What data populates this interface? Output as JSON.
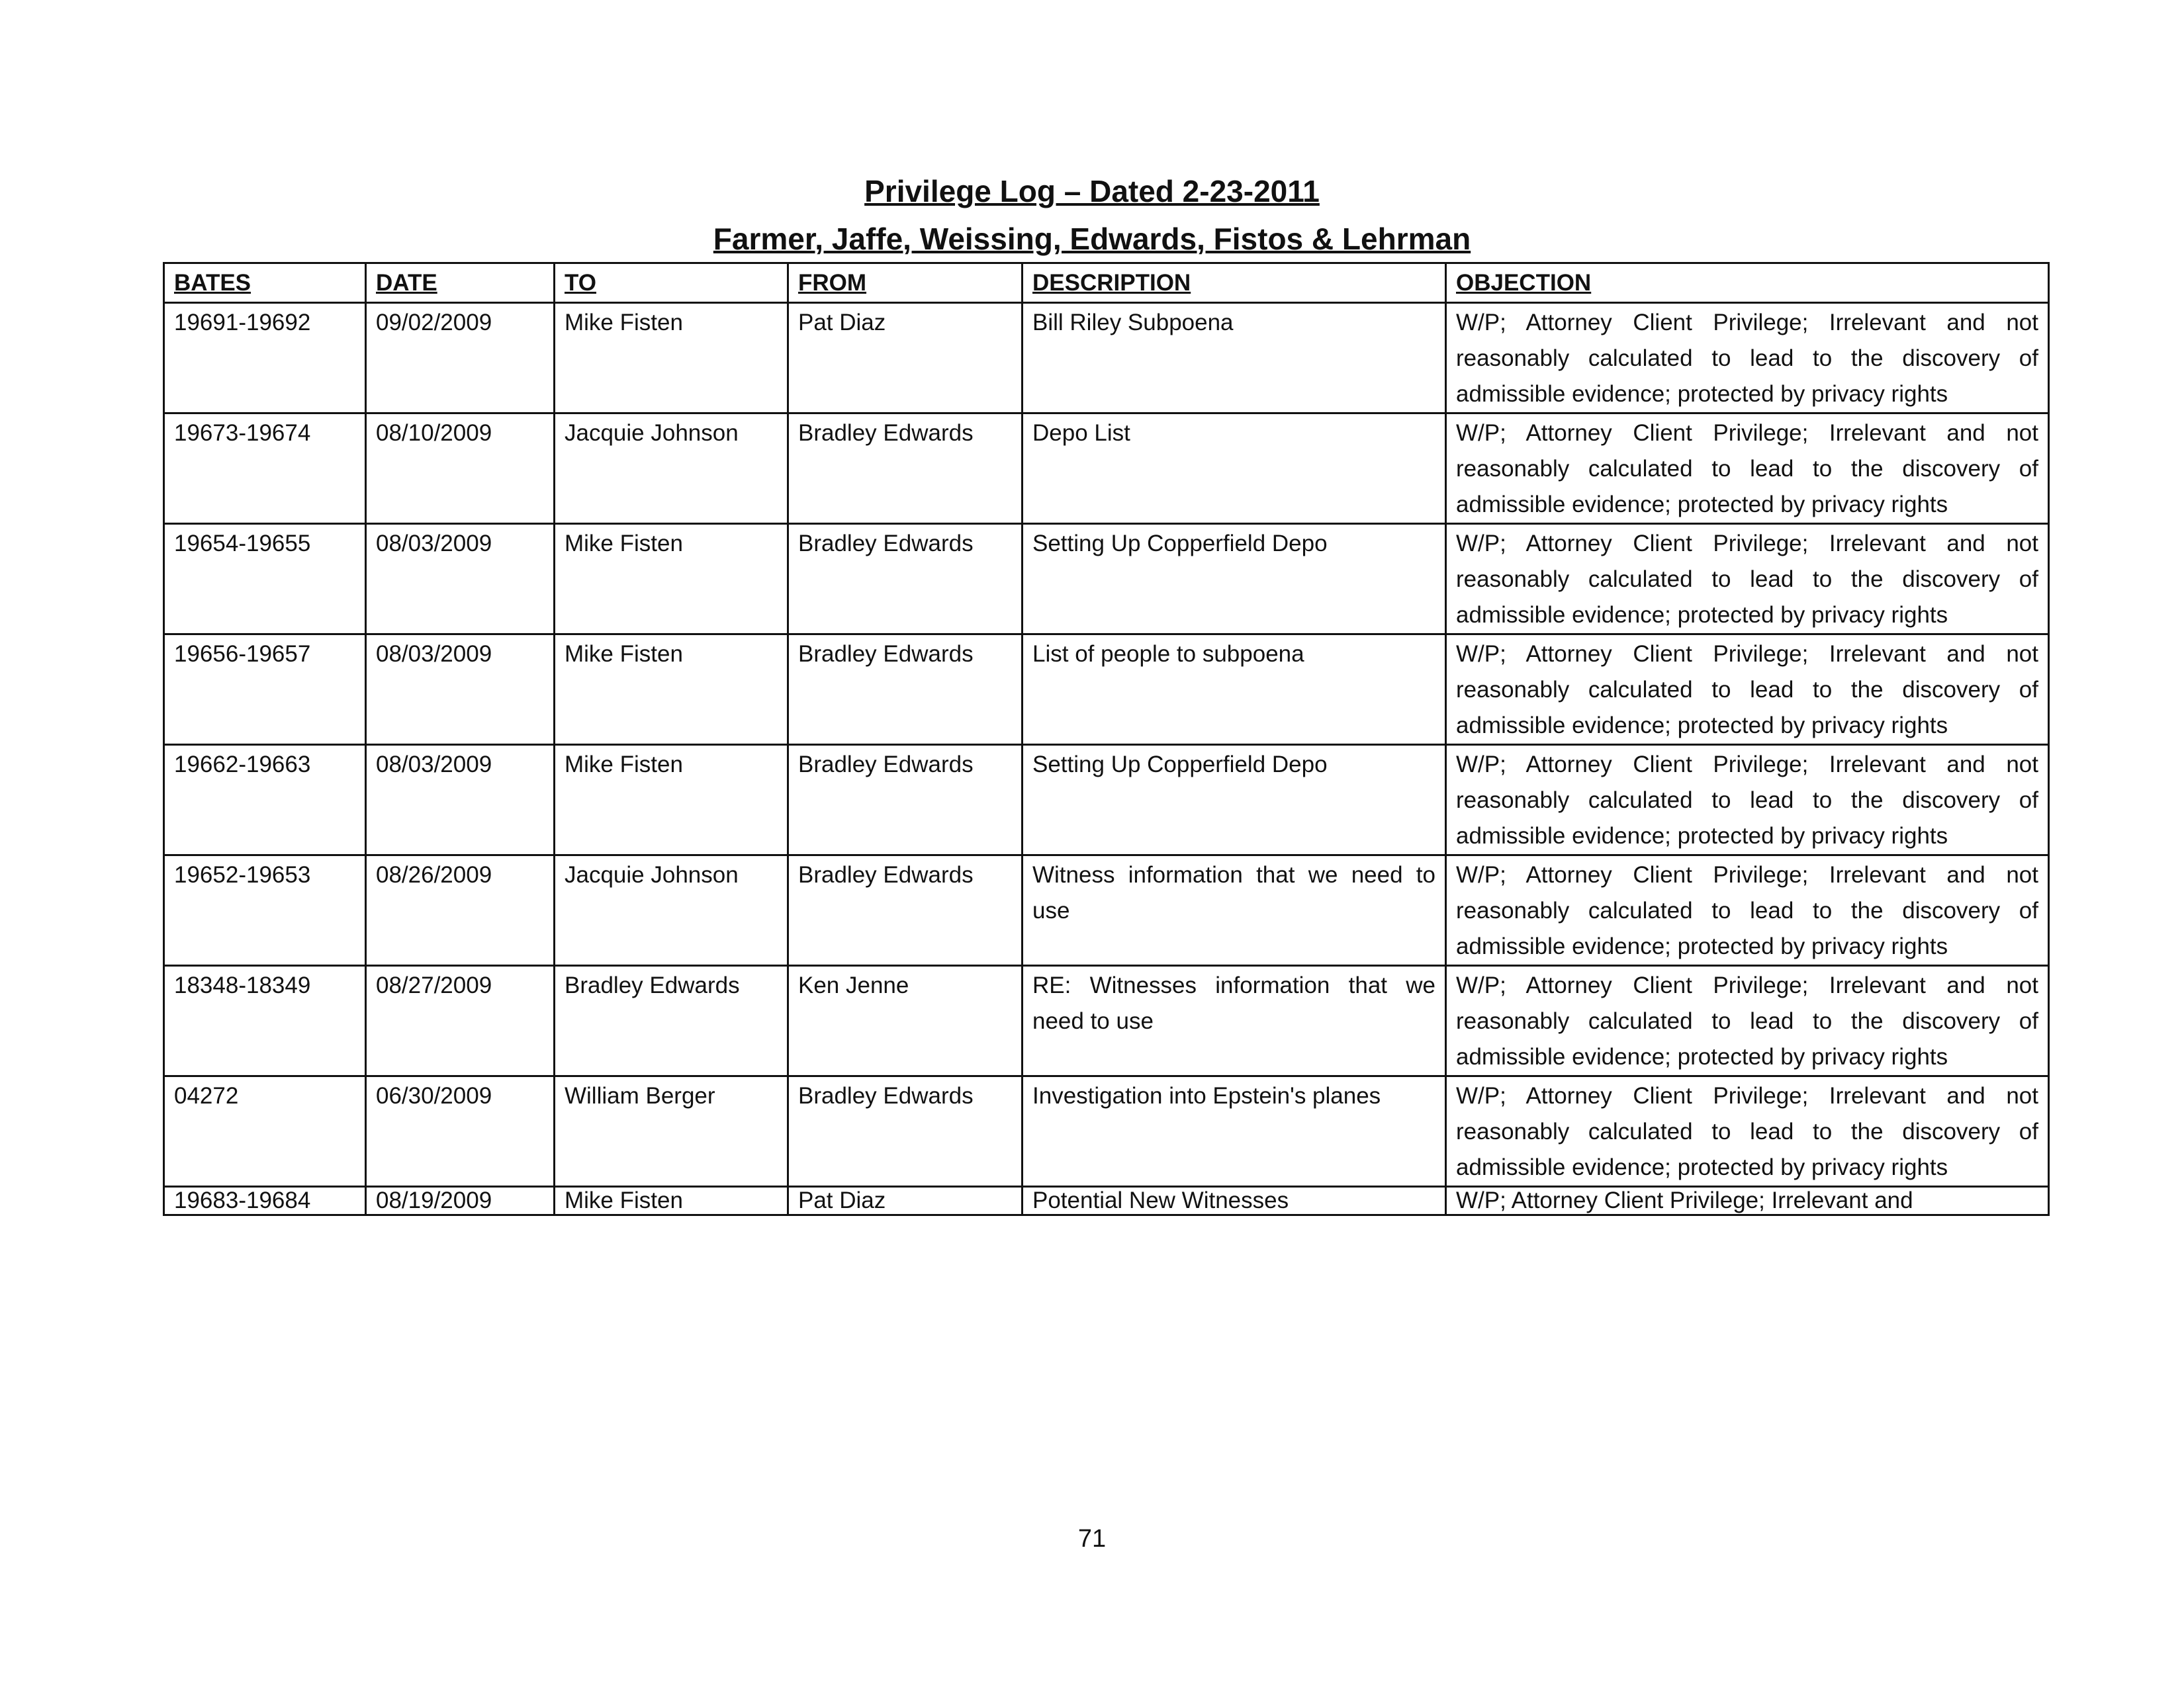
{
  "header": {
    "title": "Privilege Log – Dated 2-23-2011",
    "subtitle": "Farmer, Jaffe, Weissing, Edwards, Fistos & Lehrman"
  },
  "table": {
    "columns": [
      "BATES",
      "DATE",
      "TO",
      "FROM",
      "DESCRIPTION",
      "OBJECTION"
    ],
    "rows": [
      {
        "bates": "19691-19692",
        "date": "09/02/2009",
        "to": "Mike Fisten",
        "from": "Pat Diaz",
        "description": "Bill Riley Subpoena",
        "objection": "W/P; Attorney Client Privilege; Irrelevant and not reasonably calculated to lead to the discovery of admissible evidence; protected by privacy rights"
      },
      {
        "bates": "19673-19674",
        "date": "08/10/2009",
        "to": "Jacquie Johnson",
        "from": "Bradley Edwards",
        "description": "Depo List",
        "objection": "W/P; Attorney Client Privilege; Irrelevant and not reasonably calculated to lead to the discovery of admissible evidence; protected by privacy rights"
      },
      {
        "bates": "19654-19655",
        "date": "08/03/2009",
        "to": "Mike Fisten",
        "from": "Bradley Edwards",
        "description": "Setting Up Copperfield Depo",
        "objection": "W/P; Attorney Client Privilege; Irrelevant and not reasonably calculated to lead to the discovery of admissible evidence; protected by privacy rights"
      },
      {
        "bates": "19656-19657",
        "date": "08/03/2009",
        "to": "Mike Fisten",
        "from": "Bradley Edwards",
        "description": "List of people to subpoena",
        "objection": "W/P; Attorney Client Privilege; Irrelevant and not reasonably calculated to lead to the discovery of admissible evidence; protected by privacy rights"
      },
      {
        "bates": "19662-19663",
        "date": "08/03/2009",
        "to": "Mike Fisten",
        "from": "Bradley Edwards",
        "description": "Setting Up Copperfield Depo",
        "objection": "W/P; Attorney Client Privilege; Irrelevant and not reasonably calculated to lead to the discovery of admissible evidence; protected by privacy rights"
      },
      {
        "bates": "19652-19653",
        "date": "08/26/2009",
        "to": "Jacquie Johnson",
        "from": "Bradley Edwards",
        "description": "Witness information that we need to use",
        "objection": "W/P; Attorney Client Privilege; Irrelevant and not reasonably calculated to lead to the discovery of admissible evidence; protected by privacy rights"
      },
      {
        "bates": "18348-18349",
        "date": "08/27/2009",
        "to": "Bradley Edwards",
        "from": "Ken Jenne",
        "description": "RE: Witnesses information that we need to use",
        "objection": "W/P; Attorney Client Privilege; Irrelevant and not reasonably calculated to lead to the discovery of admissible evidence; protected by privacy rights"
      },
      {
        "bates": "04272",
        "date": "06/30/2009",
        "to": "William Berger",
        "from": "Bradley Edwards",
        "description": "Investigation into Epstein's planes",
        "objection": "W/P; Attorney Client Privilege; Irrelevant and not reasonably calculated to lead to the discovery of admissible evidence; protected by privacy rights"
      },
      {
        "bates": "19683-19684",
        "date": "08/19/2009",
        "to": "Mike Fisten",
        "from": "Pat Diaz",
        "description": "Potential New Witnesses",
        "objection": "W/P; Attorney Client Privilege; Irrelevant and"
      }
    ]
  },
  "footer": {
    "page_number": "71"
  }
}
